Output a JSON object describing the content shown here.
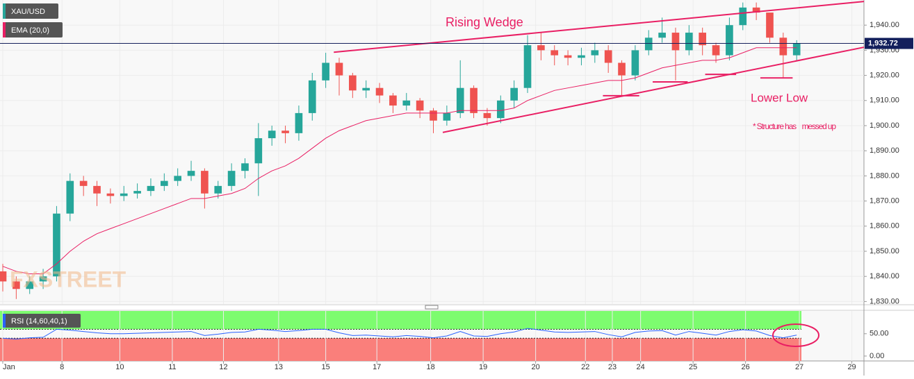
{
  "chart_data": {
    "type": "candlestick",
    "candles": {
      "name": "XAU/USD",
      "up_color": "#26a69a",
      "down_color": "#ef5350",
      "open": [
        1842,
        1838,
        1835,
        1838,
        1840,
        1865,
        1878,
        1876,
        1873,
        1872,
        1873,
        1874,
        1876,
        1878,
        1880,
        1882,
        1873,
        1876,
        1882,
        1885,
        1895,
        1898,
        1897,
        1905,
        1918,
        1925,
        1920,
        1914,
        1915,
        1912,
        1908,
        1910,
        1906,
        1902,
        1905,
        1915,
        1905,
        1903,
        1910,
        1915,
        1932,
        1930,
        1928,
        1927,
        1928,
        1930,
        1925,
        1920,
        1930,
        1935,
        1937,
        1930,
        1937,
        1932,
        1928,
        1940,
        1947,
        1945,
        1935,
        1928
      ],
      "high": [
        1845,
        1840,
        1840,
        1843,
        1868,
        1881,
        1880,
        1878,
        1875,
        1876,
        1877,
        1879,
        1881,
        1883,
        1886,
        1883,
        1878,
        1885,
        1887,
        1901,
        1900,
        1900,
        1908,
        1921,
        1929,
        1927,
        1921,
        1918,
        1917,
        1913,
        1913,
        1911,
        1907,
        1908,
        1926,
        1916,
        1907,
        1912,
        1918,
        1936,
        1937,
        1932,
        1930,
        1931,
        1933,
        1932,
        1926,
        1932,
        1938,
        1943,
        1939,
        1940,
        1939,
        1933,
        1943,
        1949,
        1949,
        1944,
        1937,
        1934
      ],
      "low": [
        1834,
        1831,
        1833,
        1835,
        1838,
        1862,
        1872,
        1868,
        1869,
        1870,
        1871,
        1872,
        1874,
        1876,
        1878,
        1867,
        1871,
        1874,
        1879,
        1872,
        1892,
        1893,
        1894,
        1902,
        1915,
        1912,
        1911,
        1911,
        1909,
        1905,
        1906,
        1903,
        1897,
        1900,
        1903,
        1903,
        1900,
        1901,
        1907,
        1913,
        1926,
        1924,
        1924,
        1924,
        1925,
        1921,
        1912,
        1918,
        1928,
        1933,
        1918,
        1928,
        1928,
        1925,
        1926,
        1938,
        1942,
        1933,
        1919,
        1926
      ],
      "close": [
        1838,
        1835,
        1838,
        1840,
        1865,
        1878,
        1876,
        1873,
        1872,
        1873,
        1874,
        1876,
        1878,
        1880,
        1882,
        1873,
        1876,
        1882,
        1885,
        1895,
        1898,
        1897,
        1905,
        1918,
        1925,
        1920,
        1914,
        1915,
        1912,
        1908,
        1910,
        1906,
        1902,
        1905,
        1915,
        1905,
        1903,
        1910,
        1915,
        1932,
        1930,
        1928,
        1927,
        1928,
        1930,
        1925,
        1920,
        1930,
        1935,
        1937,
        1930,
        1937,
        1932,
        1928,
        1940,
        1947,
        1945,
        1935,
        1928,
        1932.72
      ]
    },
    "ema": {
      "name": "EMA (20,0)",
      "color": "#e91e63",
      "values": [
        1844,
        1842,
        1841,
        1841,
        1845,
        1850,
        1854,
        1857,
        1859,
        1861,
        1863,
        1865,
        1867,
        1869,
        1871,
        1871,
        1872,
        1873,
        1875,
        1879,
        1882,
        1884,
        1887,
        1891,
        1895,
        1898,
        1900,
        1902,
        1903,
        1904,
        1905,
        1905,
        1905,
        1905,
        1906,
        1906,
        1906,
        1906,
        1907,
        1910,
        1912,
        1914,
        1915,
        1916,
        1917,
        1918,
        1918,
        1919,
        1921,
        1923,
        1924,
        1925,
        1926,
        1926,
        1927,
        1929,
        1931,
        1931,
        1931,
        1931
      ]
    },
    "last_price": {
      "value": 1932.72,
      "label": "1,932.72",
      "color": "#131f5c"
    },
    "xlim": [
      0,
      64
    ],
    "xticks": [
      {
        "value": 0,
        "label": "Jan"
      },
      {
        "value": 4.4,
        "label": "8"
      },
      {
        "value": 8.7,
        "label": "10"
      },
      {
        "value": 12.6,
        "label": "11"
      },
      {
        "value": 16.4,
        "label": "12"
      },
      {
        "value": 20.5,
        "label": "13"
      },
      {
        "value": 24,
        "label": "15"
      },
      {
        "value": 27.8,
        "label": "17"
      },
      {
        "value": 31.8,
        "label": "18"
      },
      {
        "value": 35.7,
        "label": "19"
      },
      {
        "value": 39.6,
        "label": "20"
      },
      {
        "value": 43.3,
        "label": "22"
      },
      {
        "value": 45.3,
        "label": "23"
      },
      {
        "value": 47.4,
        "label": "24"
      },
      {
        "value": 51.3,
        "label": "25"
      },
      {
        "value": 55.2,
        "label": "26"
      },
      {
        "value": 59.2,
        "label": "27"
      },
      {
        "value": 63.1,
        "label": "29"
      }
    ],
    "ylim": [
      1829,
      1950
    ],
    "yticks": [
      {
        "value": 1830,
        "label": "1,830.00"
      },
      {
        "value": 1840,
        "label": "1,840.00"
      },
      {
        "value": 1850,
        "label": "1,850.00"
      },
      {
        "value": 1860,
        "label": "1,860.00"
      },
      {
        "value": 1870,
        "label": "1,870.00"
      },
      {
        "value": 1880,
        "label": "1,880.00"
      },
      {
        "value": 1890,
        "label": "1,890.00"
      },
      {
        "value": 1900,
        "label": "1,900.00"
      },
      {
        "value": 1910,
        "label": "1,910.00"
      },
      {
        "value": 1920,
        "label": "1,920.00"
      },
      {
        "value": 1930,
        "label": "1,930.00"
      },
      {
        "value": 1940,
        "label": "1,940.00"
      }
    ],
    "grid": true,
    "trendlines": {
      "color": "#e91e63",
      "lines": [
        {
          "x": [
            24.6,
            64
          ],
          "y": [
            1929.2,
            1949.4
          ]
        },
        {
          "x": [
            32.7,
            64
          ],
          "y": [
            1897.3,
            1931.2
          ]
        },
        {
          "x": [
            44.6,
            47.3
          ],
          "y": [
            1911.9,
            1911.9
          ]
        },
        {
          "x": [
            48.3,
            50.9
          ],
          "y": [
            1917.4,
            1917.4
          ]
        },
        {
          "x": [
            52.2,
            54.5
          ],
          "y": [
            1920.4,
            1920.4
          ]
        },
        {
          "x": [
            56.3,
            58.7
          ],
          "y": [
            1919,
            1919
          ]
        }
      ]
    },
    "annotations": [
      "Rising Wedge",
      "Lower Low",
      "* Structure has    messed up"
    ],
    "watermark": "FXSTREET",
    "rsi": {
      "name": "RSI (14,60,40,1)",
      "color": "#2962ff",
      "upper": 60,
      "lower": 40,
      "ylim": [
        -11,
        101
      ],
      "yticks": [
        {
          "value": 50,
          "label": "50.00"
        },
        {
          "value": 0,
          "label": "0.00"
        }
      ],
      "values": [
        40,
        38,
        41,
        42,
        60,
        58,
        55,
        52,
        50,
        50,
        51,
        52,
        53,
        54,
        55,
        46,
        49,
        53,
        54,
        60,
        58,
        55,
        57,
        60,
        60,
        52,
        46,
        47,
        45,
        43,
        46,
        44,
        41,
        45,
        55,
        45,
        44,
        50,
        54,
        62,
        58,
        54,
        53,
        54,
        55,
        48,
        43,
        53,
        56,
        57,
        47,
        55,
        51,
        47,
        55,
        59,
        56,
        46,
        41,
        47
      ]
    }
  }
}
